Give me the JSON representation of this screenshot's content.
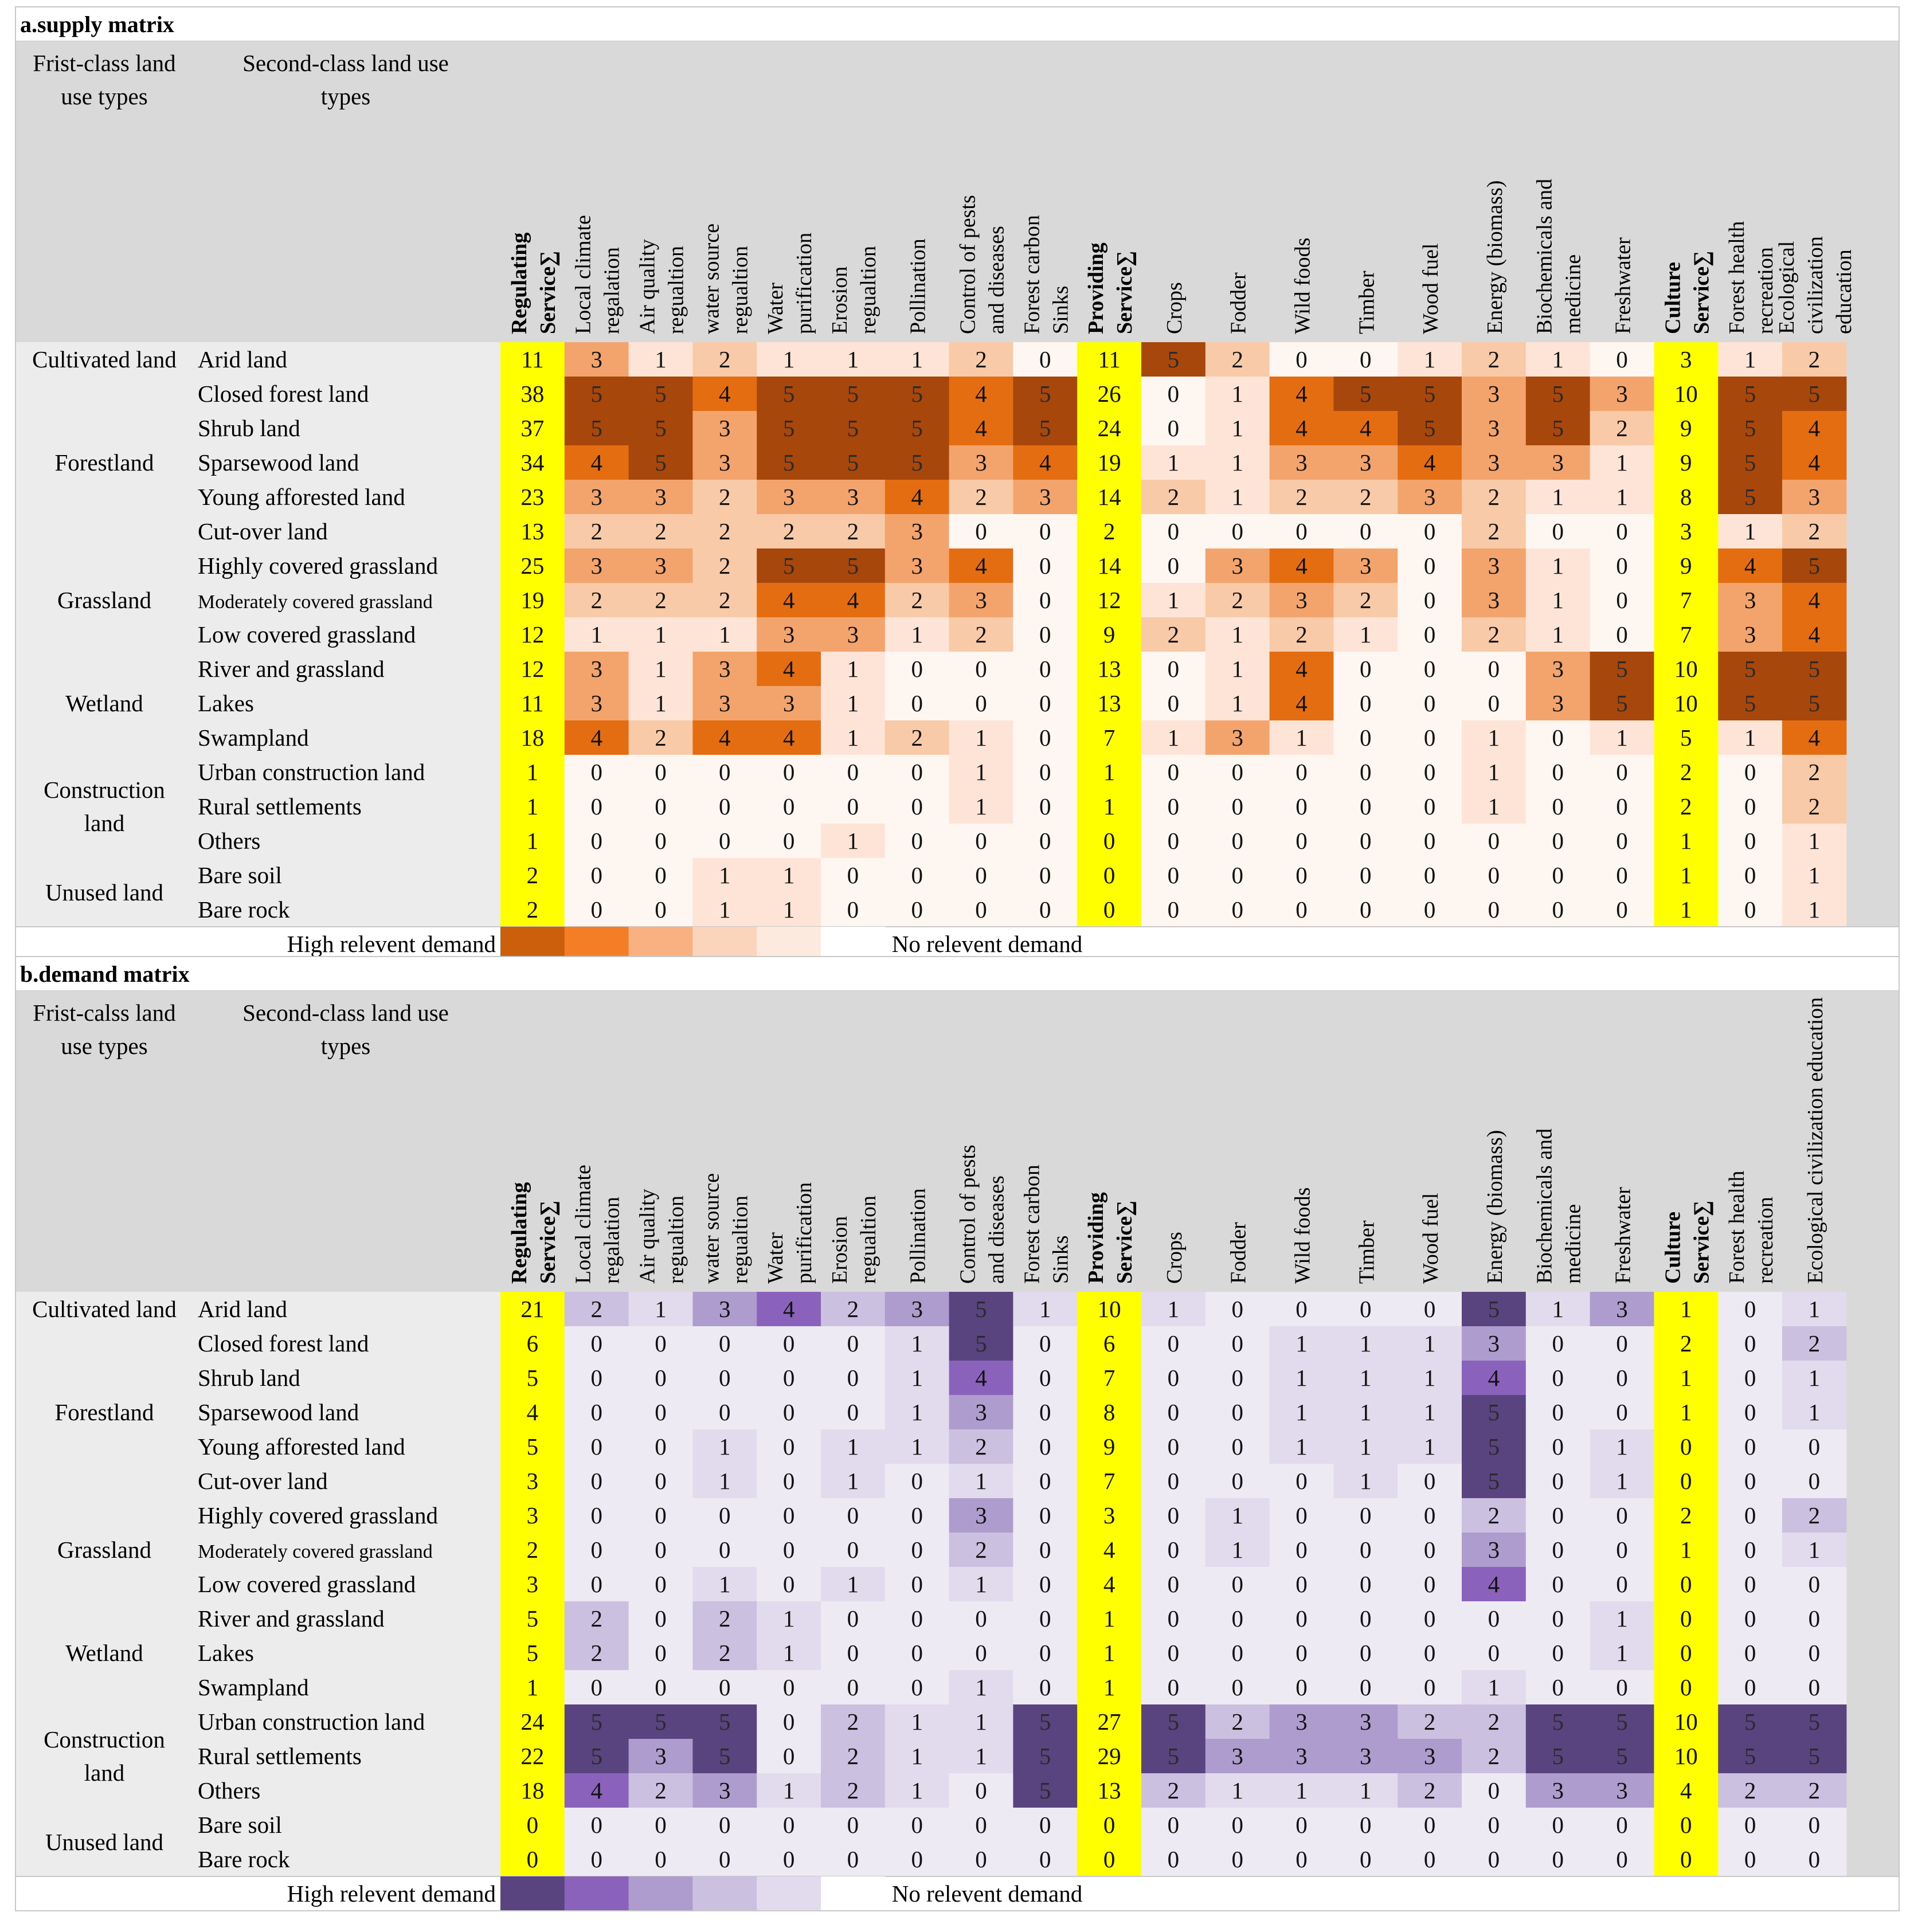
{
  "chart_data": [
    {
      "type": "heatmap",
      "title": "a.supply matrix",
      "first_class_header": "Frist-class land use types",
      "second_class_header": "Second-class land use types",
      "columns": [
        {
          "label": "Regulating Service∑",
          "sum": true
        },
        {
          "label": "Local climate regalation"
        },
        {
          "label": "Air quality regualtion"
        },
        {
          "label": "water source regualtion"
        },
        {
          "label": "Water purification"
        },
        {
          "label": "Erosion regualtion"
        },
        {
          "label": "Pollination"
        },
        {
          "label": "Control of pests and diseases"
        },
        {
          "label": "Forest carbon Sinks"
        },
        {
          "label": "Providing Service∑",
          "sum": true
        },
        {
          "label": "Crops"
        },
        {
          "label": "Fodder"
        },
        {
          "label": "Wild foods"
        },
        {
          "label": "Timber"
        },
        {
          "label": "Wood fuel"
        },
        {
          "label": "Energy (biomass)"
        },
        {
          "label": "Biochemicals and medicine"
        },
        {
          "label": "Freshwater"
        },
        {
          "label": "Culture Service∑",
          "sum": true
        },
        {
          "label": "Forest health recreation"
        },
        {
          "label": "Ecological civilization education"
        }
      ],
      "groups": [
        {
          "label": "Cultivated land",
          "rows": [
            "Arid land"
          ]
        },
        {
          "label": "Forestland",
          "rows": [
            "Closed forest land",
            "Shrub land",
            "Sparsewood land",
            "Young afforested land",
            "Cut-over land"
          ]
        },
        {
          "label": "Grassland",
          "rows": [
            "Highly covered grassland",
            "Moderately covered grassland",
            "Low covered grassland"
          ]
        },
        {
          "label": "Wetland",
          "rows": [
            "River and grassland",
            "Lakes",
            "Swampland"
          ]
        },
        {
          "label": "Construction land",
          "rows": [
            "Urban construction land",
            "Rural settlements",
            "Others"
          ]
        },
        {
          "label": "Unused land",
          "rows": [
            "Bare soil",
            "Bare rock"
          ]
        }
      ],
      "values": [
        [
          11,
          3,
          1,
          2,
          1,
          1,
          1,
          2,
          0,
          11,
          5,
          2,
          0,
          0,
          1,
          2,
          1,
          0,
          3,
          1,
          2
        ],
        [
          38,
          5,
          5,
          4,
          5,
          5,
          5,
          4,
          5,
          26,
          0,
          1,
          4,
          5,
          5,
          3,
          5,
          3,
          10,
          5,
          5
        ],
        [
          37,
          5,
          5,
          3,
          5,
          5,
          5,
          4,
          5,
          24,
          0,
          1,
          4,
          4,
          5,
          3,
          5,
          2,
          9,
          5,
          4
        ],
        [
          34,
          4,
          5,
          3,
          5,
          5,
          5,
          3,
          4,
          19,
          1,
          1,
          3,
          3,
          4,
          3,
          3,
          1,
          9,
          5,
          4
        ],
        [
          23,
          3,
          3,
          2,
          3,
          3,
          4,
          2,
          3,
          14,
          2,
          1,
          2,
          2,
          3,
          2,
          1,
          1,
          8,
          5,
          3
        ],
        [
          13,
          2,
          2,
          2,
          2,
          2,
          3,
          0,
          0,
          2,
          0,
          0,
          0,
          0,
          0,
          2,
          0,
          0,
          3,
          1,
          2
        ],
        [
          25,
          3,
          3,
          2,
          5,
          5,
          3,
          4,
          0,
          14,
          0,
          3,
          4,
          3,
          0,
          3,
          1,
          0,
          9,
          4,
          5
        ],
        [
          19,
          2,
          2,
          2,
          4,
          4,
          2,
          3,
          0,
          12,
          1,
          2,
          3,
          2,
          0,
          3,
          1,
          0,
          7,
          3,
          4
        ],
        [
          12,
          1,
          1,
          1,
          3,
          3,
          1,
          2,
          0,
          9,
          2,
          1,
          2,
          1,
          0,
          2,
          1,
          0,
          7,
          3,
          4
        ],
        [
          12,
          3,
          1,
          3,
          4,
          1,
          0,
          0,
          0,
          13,
          0,
          1,
          4,
          0,
          0,
          0,
          3,
          5,
          10,
          5,
          5
        ],
        [
          11,
          3,
          1,
          3,
          3,
          1,
          0,
          0,
          0,
          13,
          0,
          1,
          4,
          0,
          0,
          0,
          3,
          5,
          10,
          5,
          5
        ],
        [
          18,
          4,
          2,
          4,
          4,
          1,
          2,
          1,
          0,
          7,
          1,
          3,
          1,
          0,
          0,
          1,
          0,
          1,
          5,
          1,
          4
        ],
        [
          1,
          0,
          0,
          0,
          0,
          0,
          0,
          1,
          0,
          1,
          0,
          0,
          0,
          0,
          0,
          1,
          0,
          0,
          2,
          0,
          2
        ],
        [
          1,
          0,
          0,
          0,
          0,
          0,
          0,
          1,
          0,
          1,
          0,
          0,
          0,
          0,
          0,
          1,
          0,
          0,
          2,
          0,
          2
        ],
        [
          1,
          0,
          0,
          0,
          0,
          1,
          0,
          0,
          0,
          0,
          0,
          0,
          0,
          0,
          0,
          0,
          0,
          0,
          1,
          0,
          1
        ],
        [
          2,
          0,
          0,
          1,
          1,
          0,
          0,
          0,
          0,
          0,
          0,
          0,
          0,
          0,
          0,
          0,
          0,
          0,
          1,
          0,
          1
        ],
        [
          2,
          0,
          0,
          1,
          1,
          0,
          0,
          0,
          0,
          0,
          0,
          0,
          0,
          0,
          0,
          0,
          0,
          0,
          1,
          0,
          1
        ]
      ],
      "palette": [
        "#fef7f1",
        "#fde4d6",
        "#f9caa8",
        "#f3a46d",
        "#e56d11",
        "#a8470b"
      ],
      "sum_color": "#ffff00",
      "legend": {
        "high_label": "High relevent demand",
        "low_label": "No relevent demand",
        "colors": [
          "#cc5f0c",
          "#f47e26",
          "#f9b182",
          "#fbd4bc",
          "#fdeadf",
          "#ffffff"
        ]
      }
    },
    {
      "type": "heatmap",
      "title": "b.demand matrix",
      "first_class_header": "Frist-calss land use types",
      "second_class_header": "Second-class land use types",
      "columns": [
        {
          "label": "Regulating Service∑",
          "sum": true
        },
        {
          "label": "Local climate regalation"
        },
        {
          "label": "Air quality regualtion"
        },
        {
          "label": "water source regualtion"
        },
        {
          "label": "Water purification"
        },
        {
          "label": "Erosion regualtion"
        },
        {
          "label": "Pollination"
        },
        {
          "label": "Control of pests and diseases"
        },
        {
          "label": "Forest carbon Sinks"
        },
        {
          "label": "Providing Service∑",
          "sum": true
        },
        {
          "label": "Crops"
        },
        {
          "label": "Fodder"
        },
        {
          "label": "Wild foods"
        },
        {
          "label": "Timber"
        },
        {
          "label": "Wood fuel"
        },
        {
          "label": "Energy (biomass)"
        },
        {
          "label": "Biochemicals and medicine"
        },
        {
          "label": "Freshwater"
        },
        {
          "label": "Culture Service∑",
          "sum": true
        },
        {
          "label": "Forest health recreation"
        },
        {
          "label": "Ecological civilization education"
        }
      ],
      "groups": [
        {
          "label": "Cultivated land",
          "rows": [
            "Arid land"
          ]
        },
        {
          "label": "Forestland",
          "rows": [
            "Closed forest land",
            "Shrub land",
            "Sparsewood land",
            "Young afforested land",
            "Cut-over land"
          ]
        },
        {
          "label": "Grassland",
          "rows": [
            "Highly covered grassland",
            "Moderately covered grassland",
            "Low covered grassland"
          ]
        },
        {
          "label": "Wetland",
          "rows": [
            "River and grassland",
            "Lakes",
            "Swampland"
          ]
        },
        {
          "label": "Construction land",
          "rows": [
            "Urban construction land",
            "Rural settlements",
            "Others"
          ]
        },
        {
          "label": "Unused land",
          "rows": [
            "Bare soil",
            "Bare rock"
          ]
        }
      ],
      "values": [
        [
          21,
          2,
          1,
          3,
          4,
          2,
          3,
          5,
          1,
          10,
          1,
          0,
          0,
          0,
          0,
          5,
          1,
          3,
          1,
          0,
          1
        ],
        [
          6,
          0,
          0,
          0,
          0,
          0,
          1,
          5,
          0,
          6,
          0,
          0,
          1,
          1,
          1,
          3,
          0,
          0,
          2,
          0,
          2
        ],
        [
          5,
          0,
          0,
          0,
          0,
          0,
          1,
          4,
          0,
          7,
          0,
          0,
          1,
          1,
          1,
          4,
          0,
          0,
          1,
          0,
          1
        ],
        [
          4,
          0,
          0,
          0,
          0,
          0,
          1,
          3,
          0,
          8,
          0,
          0,
          1,
          1,
          1,
          5,
          0,
          0,
          1,
          0,
          1
        ],
        [
          5,
          0,
          0,
          1,
          0,
          1,
          1,
          2,
          0,
          9,
          0,
          0,
          1,
          1,
          1,
          5,
          0,
          1,
          0,
          0,
          0
        ],
        [
          3,
          0,
          0,
          1,
          0,
          1,
          0,
          1,
          0,
          7,
          0,
          0,
          0,
          1,
          0,
          5,
          0,
          1,
          0,
          0,
          0
        ],
        [
          3,
          0,
          0,
          0,
          0,
          0,
          0,
          3,
          0,
          3,
          0,
          1,
          0,
          0,
          0,
          2,
          0,
          0,
          2,
          0,
          2
        ],
        [
          2,
          0,
          0,
          0,
          0,
          0,
          0,
          2,
          0,
          4,
          0,
          1,
          0,
          0,
          0,
          3,
          0,
          0,
          1,
          0,
          1
        ],
        [
          3,
          0,
          0,
          1,
          0,
          1,
          0,
          1,
          0,
          4,
          0,
          0,
          0,
          0,
          0,
          4,
          0,
          0,
          0,
          0,
          0
        ],
        [
          5,
          2,
          0,
          2,
          1,
          0,
          0,
          0,
          0,
          1,
          0,
          0,
          0,
          0,
          0,
          0,
          0,
          1,
          0,
          0,
          0
        ],
        [
          5,
          2,
          0,
          2,
          1,
          0,
          0,
          0,
          0,
          1,
          0,
          0,
          0,
          0,
          0,
          0,
          0,
          1,
          0,
          0,
          0
        ],
        [
          1,
          0,
          0,
          0,
          0,
          0,
          0,
          1,
          0,
          1,
          0,
          0,
          0,
          0,
          0,
          1,
          0,
          0,
          0,
          0,
          0
        ],
        [
          24,
          5,
          5,
          5,
          0,
          2,
          1,
          1,
          5,
          27,
          5,
          2,
          3,
          3,
          2,
          2,
          5,
          5,
          10,
          5,
          5
        ],
        [
          22,
          5,
          3,
          5,
          0,
          2,
          1,
          1,
          5,
          29,
          5,
          3,
          3,
          3,
          3,
          2,
          5,
          5,
          10,
          5,
          5
        ],
        [
          18,
          4,
          2,
          3,
          1,
          2,
          1,
          0,
          5,
          13,
          2,
          1,
          1,
          1,
          2,
          0,
          3,
          3,
          4,
          2,
          2
        ],
        [
          0,
          0,
          0,
          0,
          0,
          0,
          0,
          0,
          0,
          0,
          0,
          0,
          0,
          0,
          0,
          0,
          0,
          0,
          0,
          0,
          0
        ],
        [
          0,
          0,
          0,
          0,
          0,
          0,
          0,
          0,
          0,
          0,
          0,
          0,
          0,
          0,
          0,
          0,
          0,
          0,
          0,
          0,
          0
        ]
      ],
      "palette": [
        "#eeeaf4",
        "#e1dbed",
        "#cbc0e0",
        "#ad9ccd",
        "#8a62bb",
        "#5a4480"
      ],
      "sum_color": "#ffff00",
      "legend": {
        "high_label": "High relevent demand",
        "low_label": "No relevent demand",
        "colors": [
          "#5a4480",
          "#8a62bb",
          "#ad9ccd",
          "#cbc0e0",
          "#e1dbed",
          "#ffffff"
        ]
      }
    }
  ],
  "colors": {
    "header_gray": "#d9d9d9",
    "row_gray": "#ececec",
    "border": "#c8c8c8"
  }
}
